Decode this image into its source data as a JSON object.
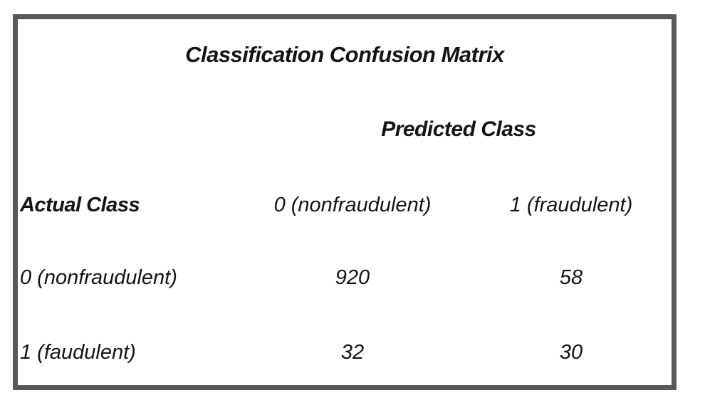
{
  "title": "Classification Confusion Matrix",
  "predicted_class_label": "Predicted Class",
  "actual_class_label": "Actual Class",
  "columns": [
    "0 (nonfraudulent)",
    "1 (fraudulent)"
  ],
  "rows": [
    {
      "label": "0 (nonfraudulent)",
      "values": [
        "920",
        "58"
      ]
    },
    {
      "label": "1 (faudulent)",
      "values": [
        "32",
        "30"
      ]
    }
  ],
  "colors": {
    "border": "#58585a",
    "text": "#141414",
    "background": "#ffffff"
  },
  "chart_data": {
    "type": "table",
    "title": "Classification Confusion Matrix",
    "column_group_label": "Predicted Class",
    "row_group_label": "Actual Class",
    "columns": [
      "0 (nonfraudulent)",
      "1 (fraudulent)"
    ],
    "row_labels": [
      "0 (nonfraudulent)",
      "1 (faudulent)"
    ],
    "values": [
      [
        920,
        58
      ],
      [
        32,
        30
      ]
    ]
  }
}
